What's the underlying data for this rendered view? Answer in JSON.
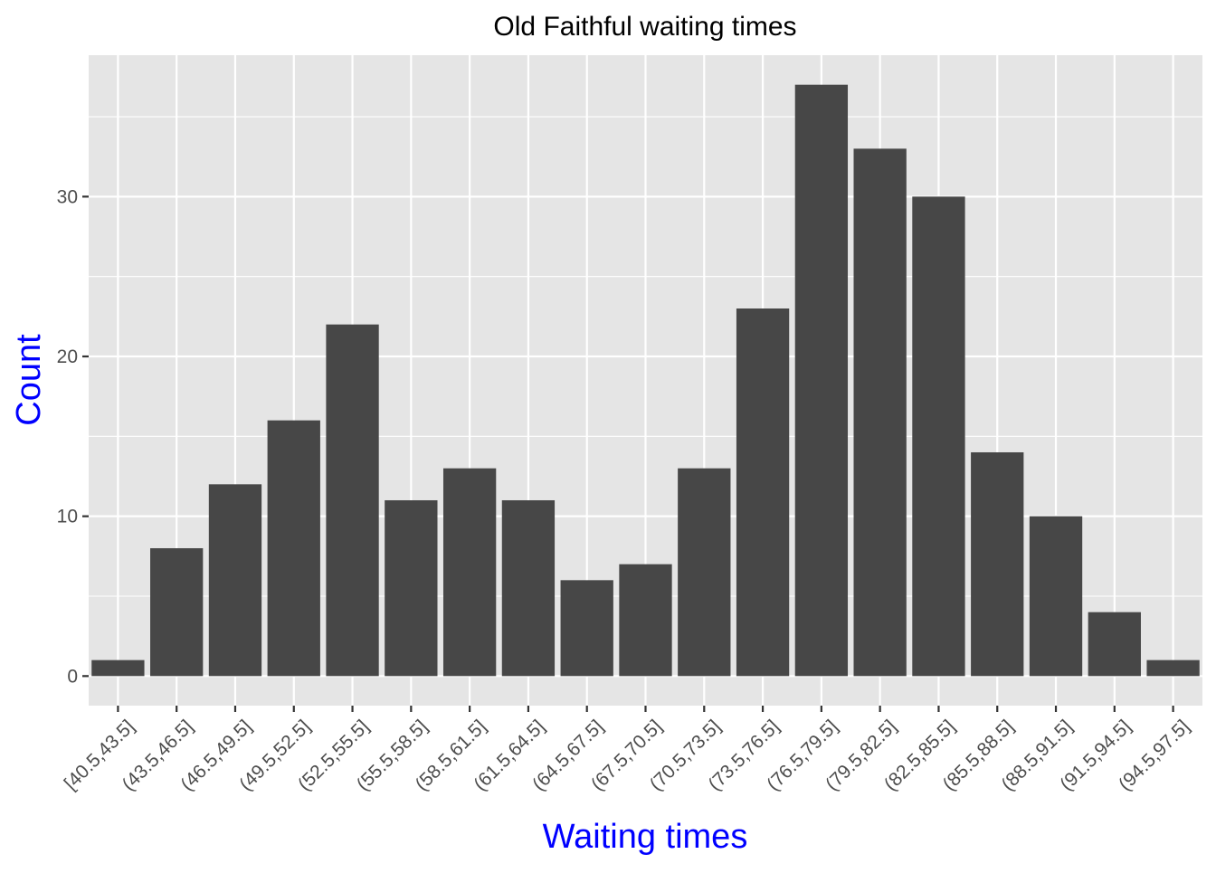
{
  "colors": {
    "bar_fill": "#474747",
    "panel_background": "#e5e5e5",
    "grid": "#ffffff",
    "axis_title": "#0000ff",
    "tick_text": "#4d4d4d",
    "title_text": "#000000"
  },
  "chart_data": {
    "type": "bar",
    "title": "Old Faithful waiting times",
    "xlabel": "Waiting times",
    "ylabel": "Count",
    "categories": [
      "[40.5,43.5]",
      "(43.5,46.5]",
      "(46.5,49.5]",
      "(49.5,52.5]",
      "(52.5,55.5]",
      "(55.5,58.5]",
      "(58.5,61.5]",
      "(61.5,64.5]",
      "(64.5,67.5]",
      "(67.5,70.5]",
      "(70.5,73.5]",
      "(73.5,76.5]",
      "(76.5,79.5]",
      "(79.5,82.5]",
      "(82.5,85.5]",
      "(85.5,88.5]",
      "(88.5,91.5]",
      "(91.5,94.5]",
      "(94.5,97.5]"
    ],
    "values": [
      1,
      8,
      12,
      16,
      22,
      11,
      13,
      11,
      6,
      7,
      13,
      23,
      37,
      33,
      30,
      14,
      10,
      4,
      1
    ],
    "ylim": [
      -1.85,
      38.85
    ],
    "yticks": [
      0,
      10,
      20,
      30
    ],
    "ytick_labels": [
      "0",
      "10",
      "20",
      "30"
    ],
    "grid": true,
    "legend": "none"
  }
}
